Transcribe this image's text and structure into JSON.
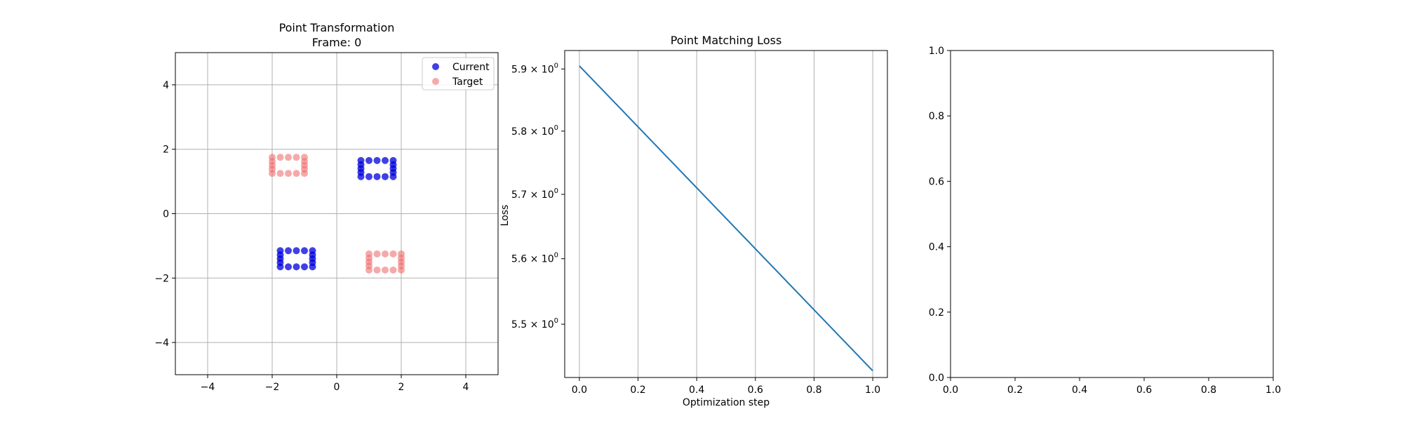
{
  "chart_data": [
    {
      "type": "scatter",
      "title": "Point Transformation",
      "subtitle": "Frame: 0",
      "xlabel": "",
      "ylabel": "",
      "xlim": [
        -5,
        5
      ],
      "ylim": [
        -5,
        5
      ],
      "xticks": [
        -4,
        -2,
        0,
        2,
        4
      ],
      "yticks": [
        -4,
        -2,
        0,
        2,
        4
      ],
      "xtick_labels": [
        "−4",
        "−2",
        "0",
        "2",
        "4"
      ],
      "ytick_labels": [
        "−4",
        "−2",
        "0",
        "2",
        "4"
      ],
      "grid": true,
      "legend_position": "top-right",
      "series": [
        {
          "name": "Current",
          "color": "#0000dd",
          "alpha": 0.75,
          "points": [
            [
              -1.75,
              -1.15
            ],
            [
              -1.5,
              -1.15
            ],
            [
              -1.25,
              -1.15
            ],
            [
              -1.0,
              -1.15
            ],
            [
              -0.75,
              -1.15
            ],
            [
              -1.75,
              -1.65
            ],
            [
              -1.5,
              -1.65
            ],
            [
              -1.25,
              -1.65
            ],
            [
              -1.0,
              -1.65
            ],
            [
              -0.75,
              -1.65
            ],
            [
              -1.75,
              -1.28
            ],
            [
              -1.75,
              -1.4
            ],
            [
              -1.75,
              -1.52
            ],
            [
              -0.75,
              -1.28
            ],
            [
              -0.75,
              -1.4
            ],
            [
              -0.75,
              -1.52
            ],
            [
              0.75,
              1.65
            ],
            [
              1.0,
              1.65
            ],
            [
              1.25,
              1.65
            ],
            [
              1.5,
              1.65
            ],
            [
              1.75,
              1.65
            ],
            [
              0.75,
              1.15
            ],
            [
              1.0,
              1.15
            ],
            [
              1.25,
              1.15
            ],
            [
              1.5,
              1.15
            ],
            [
              1.75,
              1.15
            ],
            [
              0.75,
              1.28
            ],
            [
              0.75,
              1.4
            ],
            [
              0.75,
              1.52
            ],
            [
              1.75,
              1.28
            ],
            [
              1.75,
              1.4
            ],
            [
              1.75,
              1.52
            ]
          ]
        },
        {
          "name": "Target",
          "color": "#f07070",
          "alpha": 0.6,
          "points": [
            [
              -2.0,
              1.75
            ],
            [
              -1.75,
              1.75
            ],
            [
              -1.5,
              1.75
            ],
            [
              -1.25,
              1.75
            ],
            [
              -1.0,
              1.75
            ],
            [
              -2.0,
              1.25
            ],
            [
              -1.75,
              1.25
            ],
            [
              -1.5,
              1.25
            ],
            [
              -1.25,
              1.25
            ],
            [
              -1.0,
              1.25
            ],
            [
              -2.0,
              1.38
            ],
            [
              -2.0,
              1.5
            ],
            [
              -2.0,
              1.62
            ],
            [
              -1.0,
              1.38
            ],
            [
              -1.0,
              1.5
            ],
            [
              -1.0,
              1.62
            ],
            [
              1.0,
              -1.25
            ],
            [
              1.25,
              -1.25
            ],
            [
              1.5,
              -1.25
            ],
            [
              1.75,
              -1.25
            ],
            [
              2.0,
              -1.25
            ],
            [
              1.0,
              -1.75
            ],
            [
              1.25,
              -1.75
            ],
            [
              1.5,
              -1.75
            ],
            [
              1.75,
              -1.75
            ],
            [
              2.0,
              -1.75
            ],
            [
              1.0,
              -1.38
            ],
            [
              1.0,
              -1.5
            ],
            [
              1.0,
              -1.62
            ],
            [
              2.0,
              -1.38
            ],
            [
              2.0,
              -1.5
            ],
            [
              2.0,
              -1.62
            ]
          ]
        }
      ]
    },
    {
      "type": "line",
      "title": "Point Matching Loss",
      "xlabel": "Optimization step",
      "ylabel": "Loss",
      "yscale": "log",
      "xlim": [
        -0.05,
        1.05
      ],
      "ylim": [
        5.42,
        5.93
      ],
      "xticks": [
        0.0,
        0.2,
        0.4,
        0.6,
        0.8,
        1.0
      ],
      "xtick_labels": [
        "0.0",
        "0.2",
        "0.4",
        "0.6",
        "0.8",
        "1.0"
      ],
      "yticks": [
        5.5,
        5.6,
        5.7,
        5.8,
        5.9
      ],
      "ytick_mantissas": [
        "5.5",
        "5.6",
        "5.7",
        "5.8",
        "5.9"
      ],
      "ytick_base": "10",
      "ytick_exp": "0",
      "grid_x": true,
      "series": [
        {
          "color": "#1f77b4",
          "x": [
            0.0,
            1.0
          ],
          "y": [
            5.905,
            5.43
          ]
        }
      ]
    },
    {
      "type": "line",
      "title": "",
      "xlabel": "",
      "ylabel": "",
      "xlim": [
        0.0,
        1.0
      ],
      "ylim": [
        0.0,
        1.0
      ],
      "xticks": [
        0.0,
        0.2,
        0.4,
        0.6,
        0.8,
        1.0
      ],
      "xtick_labels": [
        "0.0",
        "0.2",
        "0.4",
        "0.6",
        "0.8",
        "1.0"
      ],
      "yticks": [
        0.0,
        0.2,
        0.4,
        0.6,
        0.8,
        1.0
      ],
      "ytick_labels": [
        "0.0",
        "0.2",
        "0.4",
        "0.6",
        "0.8",
        "1.0"
      ],
      "series": []
    }
  ]
}
